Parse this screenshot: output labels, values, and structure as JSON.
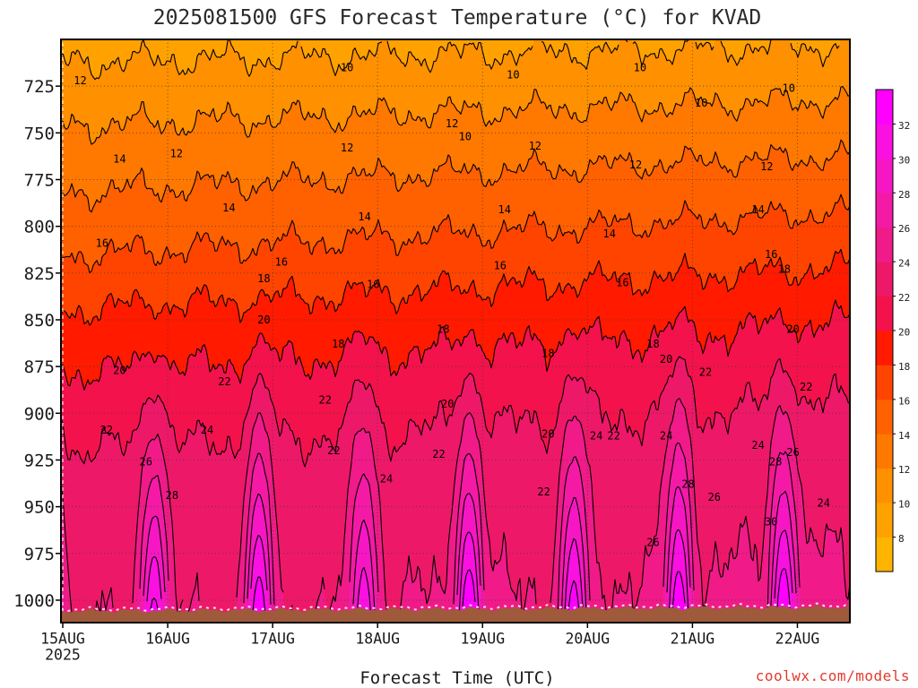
{
  "watermark": "coolwx.com/models",
  "chart_data": {
    "type": "heatmap",
    "title": "2025081500 GFS Forecast Temperature (°C) for KVAD",
    "xlabel": "Forecast Time (UTC)",
    "x_ticks": [
      "15AUG",
      "16AUG",
      "17AUG",
      "18AUG",
      "19AUG",
      "20AUG",
      "21AUG",
      "22AUG"
    ],
    "x_year": "2025",
    "xlim": [
      "2025-08-15T00Z",
      "2025-08-22T12Z"
    ],
    "y_ticks": [
      725,
      750,
      775,
      800,
      825,
      850,
      875,
      900,
      925,
      950,
      975,
      1000
    ],
    "ylim": [
      700,
      1012
    ],
    "grid": true,
    "colorbar": {
      "placement": "right",
      "labels": [
        8,
        10,
        12,
        14,
        16,
        18,
        20,
        22,
        24,
        26,
        28,
        30,
        32
      ],
      "colors": [
        "#FFB400",
        "#FFA200",
        "#FF9000",
        "#FF7800",
        "#FF6000",
        "#FF4400",
        "#FF1A00",
        "#F3124C",
        "#EE1868",
        "#F01A88",
        "#F41AA6",
        "#F716C4",
        "#FA10E0",
        "#FF00FF"
      ]
    },
    "terrain_color": "#9E5A3A",
    "contour_labels": [
      {
        "value": 12,
        "time": "2025-08-15T04Z",
        "pressure": 722
      },
      {
        "value": 10,
        "time": "2025-08-17T17Z",
        "pressure": 715
      },
      {
        "value": 10,
        "time": "2025-08-19T07Z",
        "pressure": 719
      },
      {
        "value": 10,
        "time": "2025-08-20T12Z",
        "pressure": 715
      },
      {
        "value": 10,
        "time": "2025-08-21T22Z",
        "pressure": 726
      },
      {
        "value": 10,
        "time": "2025-08-21T02Z",
        "pressure": 734
      },
      {
        "value": 10,
        "time": "2025-08-18T20Z",
        "pressure": 752
      },
      {
        "value": 12,
        "time": "2025-08-18T17Z",
        "pressure": 745
      },
      {
        "value": 12,
        "time": "2025-08-16T02Z",
        "pressure": 761
      },
      {
        "value": 12,
        "time": "2025-08-17T17Z",
        "pressure": 758
      },
      {
        "value": 12,
        "time": "2025-08-19T12Z",
        "pressure": 757
      },
      {
        "value": 12,
        "time": "2025-08-20T11Z",
        "pressure": 767
      },
      {
        "value": 12,
        "time": "2025-08-21T17Z",
        "pressure": 768
      },
      {
        "value": 14,
        "time": "2025-08-15T13Z",
        "pressure": 764
      },
      {
        "value": 14,
        "time": "2025-08-16T14Z",
        "pressure": 790
      },
      {
        "value": 14,
        "time": "2025-08-17T21Z",
        "pressure": 795
      },
      {
        "value": 14,
        "time": "2025-08-19T05Z",
        "pressure": 791
      },
      {
        "value": 14,
        "time": "2025-08-20T05Z",
        "pressure": 804
      },
      {
        "value": 14,
        "time": "2025-08-21T15Z",
        "pressure": 791
      },
      {
        "value": 16,
        "time": "2025-08-15T09Z",
        "pressure": 809
      },
      {
        "value": 16,
        "time": "2025-08-17T02Z",
        "pressure": 819
      },
      {
        "value": 16,
        "time": "2025-08-17T23Z",
        "pressure": 831
      },
      {
        "value": 16,
        "time": "2025-08-19T04Z",
        "pressure": 821
      },
      {
        "value": 16,
        "time": "2025-08-20T08Z",
        "pressure": 830
      },
      {
        "value": 16,
        "time": "2025-08-21T18Z",
        "pressure": 815
      },
      {
        "value": 18,
        "time": "2025-08-21T21Z",
        "pressure": 823
      },
      {
        "value": 18,
        "time": "2025-08-16T22Z",
        "pressure": 828
      },
      {
        "value": 18,
        "time": "2025-08-17T15Z",
        "pressure": 863
      },
      {
        "value": 18,
        "time": "2025-08-18T15Z",
        "pressure": 855
      },
      {
        "value": 18,
        "time": "2025-08-19T15Z",
        "pressure": 868
      },
      {
        "value": 18,
        "time": "2025-08-20T15Z",
        "pressure": 863
      },
      {
        "value": 20,
        "time": "2025-08-15T13Z",
        "pressure": 877
      },
      {
        "value": 20,
        "time": "2025-08-16T22Z",
        "pressure": 850
      },
      {
        "value": 20,
        "time": "2025-08-18T16Z",
        "pressure": 895
      },
      {
        "value": 20,
        "time": "2025-08-19T15Z",
        "pressure": 911
      },
      {
        "value": 20,
        "time": "2025-08-20T18Z",
        "pressure": 871
      },
      {
        "value": 20,
        "time": "2025-08-21T23Z",
        "pressure": 855
      },
      {
        "value": 22,
        "time": "2025-08-15T10Z",
        "pressure": 909
      },
      {
        "value": 22,
        "time": "2025-08-16T13Z",
        "pressure": 883
      },
      {
        "value": 22,
        "time": "2025-08-17T12Z",
        "pressure": 893
      },
      {
        "value": 22,
        "time": "2025-08-17T14Z",
        "pressure": 920
      },
      {
        "value": 22,
        "time": "2025-08-18T14Z",
        "pressure": 922
      },
      {
        "value": 22,
        "time": "2025-08-19T14Z",
        "pressure": 942
      },
      {
        "value": 22,
        "time": "2025-08-20T06Z",
        "pressure": 912
      },
      {
        "value": 22,
        "time": "2025-08-21T03Z",
        "pressure": 878
      },
      {
        "value": 22,
        "time": "2025-08-22T02Z",
        "pressure": 886
      },
      {
        "value": 24,
        "time": "2025-08-16T09Z",
        "pressure": 909
      },
      {
        "value": 24,
        "time": "2025-08-18T02Z",
        "pressure": 935
      },
      {
        "value": 24,
        "time": "2025-08-20T02Z",
        "pressure": 912
      },
      {
        "value": 24,
        "time": "2025-08-20T18Z",
        "pressure": 912
      },
      {
        "value": 24,
        "time": "2025-08-21T15Z",
        "pressure": 917
      },
      {
        "value": 24,
        "time": "2025-08-22T06Z",
        "pressure": 948
      },
      {
        "value": 26,
        "time": "2025-08-15T19Z",
        "pressure": 926
      },
      {
        "value": 26,
        "time": "2025-08-21T05Z",
        "pressure": 945
      },
      {
        "value": 26,
        "time": "2025-08-20T15Z",
        "pressure": 969
      },
      {
        "value": 26,
        "time": "2025-08-21T23Z",
        "pressure": 921
      },
      {
        "value": 28,
        "time": "2025-08-16T01Z",
        "pressure": 944
      },
      {
        "value": 28,
        "time": "2025-08-20T23Z",
        "pressure": 938
      },
      {
        "value": 28,
        "time": "2025-08-21T19Z",
        "pressure": 926
      },
      {
        "value": 30,
        "time": "2025-08-21T18Z",
        "pressure": 958
      }
    ]
  }
}
